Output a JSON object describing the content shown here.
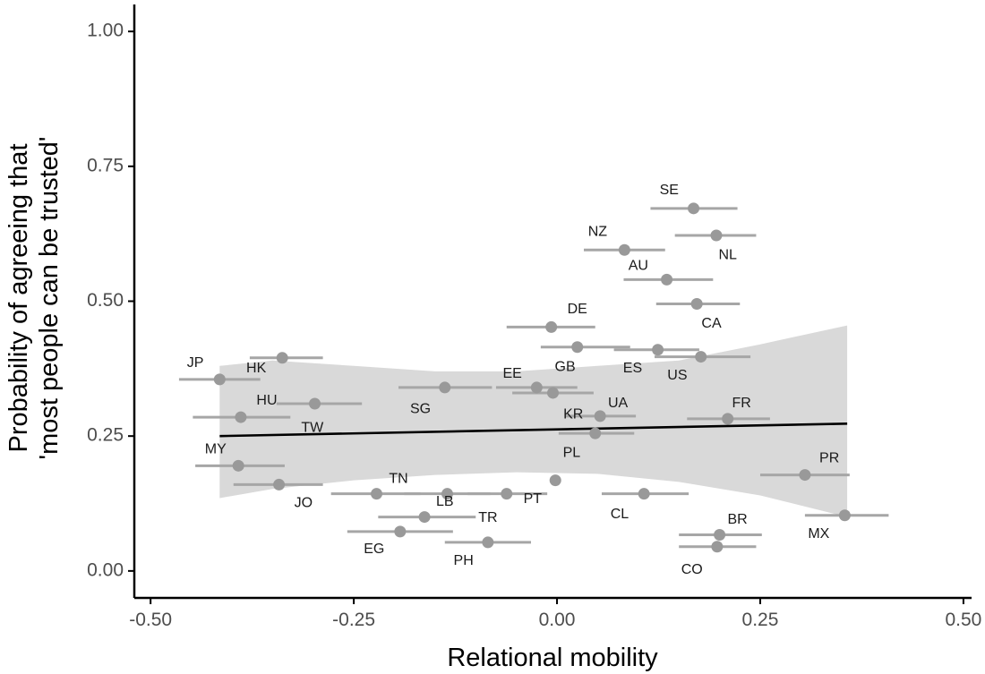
{
  "chart_data": {
    "type": "scatter",
    "xlabel": "Relational mobility",
    "ylabel_lines": [
      "Probability of agreeing that",
      "'most people can be trusted'"
    ],
    "xlim": [
      -0.52,
      0.51
    ],
    "ylim": [
      -0.05,
      1.05
    ],
    "x_ticks": [
      -0.5,
      -0.25,
      0,
      0.25,
      0.5
    ],
    "x_tick_labels": [
      "-0.50",
      "-0.25",
      "0.00",
      "0.25",
      "0.50"
    ],
    "y_ticks": [
      0,
      0.25,
      0.5,
      0.75,
      1.0
    ],
    "y_tick_labels": [
      "0.00",
      "0.25",
      "0.50",
      "0.75",
      "1.00"
    ],
    "colors": {
      "point": "#999999",
      "errorbar": "#a6a6a6",
      "band": "#d9d9d9",
      "fit": "#000000",
      "axis": "#000000"
    },
    "fit_line": {
      "x": [
        -0.415,
        0.357
      ],
      "y": [
        0.25,
        0.273
      ]
    },
    "confidence_band": {
      "x": [
        -0.415,
        -0.35,
        -0.25,
        -0.15,
        -0.05,
        0.05,
        0.15,
        0.25,
        0.357
      ],
      "upper": [
        0.38,
        0.39,
        0.38,
        0.37,
        0.37,
        0.38,
        0.39,
        0.42,
        0.455
      ],
      "lower": [
        0.135,
        0.152,
        0.168,
        0.178,
        0.183,
        0.18,
        0.165,
        0.14,
        0.1
      ]
    },
    "points": [
      {
        "label": "JP",
        "x": -0.415,
        "y": 0.355,
        "xmin": -0.465,
        "xmax": -0.365,
        "lx": -0.445,
        "ly": 0.385
      },
      {
        "label": "HK",
        "x": -0.338,
        "y": 0.395,
        "xmin": -0.378,
        "xmax": -0.288,
        "lx": -0.37,
        "ly": 0.375
      },
      {
        "label": "HU",
        "x": -0.298,
        "y": 0.31,
        "xmin": -0.345,
        "xmax": -0.24,
        "lx": -0.357,
        "ly": 0.315
      },
      {
        "label": "TW",
        "x": -0.389,
        "y": 0.285,
        "xmin": -0.448,
        "xmax": -0.328,
        "lx": -0.301,
        "ly": 0.265
      },
      {
        "label": "MY",
        "x": -0.392,
        "y": 0.195,
        "xmin": -0.445,
        "xmax": -0.335,
        "lx": -0.42,
        "ly": 0.225
      },
      {
        "label": "JO",
        "x": -0.342,
        "y": 0.16,
        "xmin": -0.398,
        "xmax": -0.288,
        "lx": -0.312,
        "ly": 0.125
      },
      {
        "label": "TN",
        "x": -0.222,
        "y": 0.143,
        "xmin": -0.278,
        "xmax": -0.168,
        "lx": -0.195,
        "ly": 0.17
      },
      {
        "label": "EG",
        "x": -0.193,
        "y": 0.073,
        "xmin": -0.258,
        "xmax": -0.128,
        "lx": -0.225,
        "ly": 0.04
      },
      {
        "label": "TR",
        "x": -0.163,
        "y": 0.1,
        "xmin": -0.22,
        "xmax": -0.1,
        "lx": -0.085,
        "ly": 0.098
      },
      {
        "label": "LB",
        "x": -0.135,
        "y": 0.143,
        "xmin": -0.188,
        "xmax": -0.082,
        "lx": -0.138,
        "ly": 0.128
      },
      {
        "label": "PH",
        "x": -0.085,
        "y": 0.053,
        "xmin": -0.138,
        "xmax": -0.032,
        "lx": -0.115,
        "ly": 0.018
      },
      {
        "label": "PT",
        "x": -0.062,
        "y": 0.143,
        "xmin": -0.11,
        "xmax": -0.012,
        "lx": -0.03,
        "ly": 0.133
      },
      {
        "label": "SG",
        "x": -0.138,
        "y": 0.34,
        "xmin": -0.195,
        "xmax": -0.08,
        "lx": -0.168,
        "ly": 0.3
      },
      {
        "label": "EE",
        "x": -0.025,
        "y": 0.34,
        "xmin": -0.075,
        "xmax": 0.025,
        "lx": -0.055,
        "ly": 0.365
      },
      {
        "label": "GB",
        "x": -0.005,
        "y": 0.33,
        "xmin": -0.055,
        "xmax": 0.045,
        "lx": 0.01,
        "ly": 0.378
      },
      {
        "label": "DE",
        "x": -0.007,
        "y": 0.452,
        "xmin": -0.062,
        "xmax": 0.047,
        "lx": 0.025,
        "ly": 0.485
      },
      {
        "label": "UA",
        "x": 0.025,
        "y": 0.415,
        "xmin": -0.02,
        "xmax": 0.09,
        "lx": 0.075,
        "ly": 0.31
      },
      {
        "label": "KR",
        "x": 0.053,
        "y": 0.287,
        "xmin": 0.01,
        "xmax": 0.097,
        "lx": 0.02,
        "ly": 0.29
      },
      {
        "label": "PL",
        "x": 0.047,
        "y": 0.255,
        "xmin": 0.002,
        "xmax": 0.095,
        "lx": 0.018,
        "ly": 0.218
      },
      {
        "label": "CL",
        "x": 0.107,
        "y": 0.143,
        "xmin": 0.055,
        "xmax": 0.162,
        "lx": 0.077,
        "ly": 0.105
      },
      {
        "label": "NZ",
        "x": 0.083,
        "y": 0.595,
        "xmin": 0.033,
        "xmax": 0.133,
        "lx": 0.05,
        "ly": 0.628
      },
      {
        "label": "SE",
        "x": 0.168,
        "y": 0.672,
        "xmin": 0.115,
        "xmax": 0.222,
        "lx": 0.138,
        "ly": 0.705
      },
      {
        "label": "NL",
        "x": 0.196,
        "y": 0.622,
        "xmin": 0.145,
        "xmax": 0.245,
        "lx": 0.21,
        "ly": 0.585
      },
      {
        "label": "AU",
        "x": 0.135,
        "y": 0.54,
        "xmin": 0.082,
        "xmax": 0.192,
        "lx": 0.1,
        "ly": 0.565
      },
      {
        "label": "CA",
        "x": 0.172,
        "y": 0.495,
        "xmin": 0.122,
        "xmax": 0.225,
        "lx": 0.19,
        "ly": 0.458
      },
      {
        "label": "ES",
        "x": 0.124,
        "y": 0.41,
        "xmin": 0.07,
        "xmax": 0.175,
        "lx": 0.093,
        "ly": 0.375
      },
      {
        "label": "US",
        "x": 0.177,
        "y": 0.397,
        "xmin": 0.12,
        "xmax": 0.238,
        "lx": 0.148,
        "ly": 0.362
      },
      {
        "label": "FR",
        "x": 0.21,
        "y": 0.282,
        "xmin": 0.16,
        "xmax": 0.262,
        "lx": 0.227,
        "ly": 0.31
      },
      {
        "label": "PR",
        "x": 0.305,
        "y": 0.178,
        "xmin": 0.25,
        "xmax": 0.36,
        "lx": 0.335,
        "ly": 0.208
      },
      {
        "label": "MX",
        "x": 0.354,
        "y": 0.103,
        "xmin": 0.305,
        "xmax": 0.408,
        "lx": 0.322,
        "ly": 0.068
      },
      {
        "label": "BR",
        "x": 0.2,
        "y": 0.067,
        "xmin": 0.15,
        "xmax": 0.252,
        "lx": 0.222,
        "ly": 0.095
      },
      {
        "label": "CO",
        "x": 0.197,
        "y": 0.045,
        "xmin": 0.15,
        "xmax": 0.245,
        "lx": 0.166,
        "ly": 0.002
      },
      {
        "label": "",
        "x": -0.002,
        "y": 0.168,
        "xmin": -0.002,
        "xmax": -0.002,
        "lx": 0,
        "ly": 0
      }
    ]
  }
}
